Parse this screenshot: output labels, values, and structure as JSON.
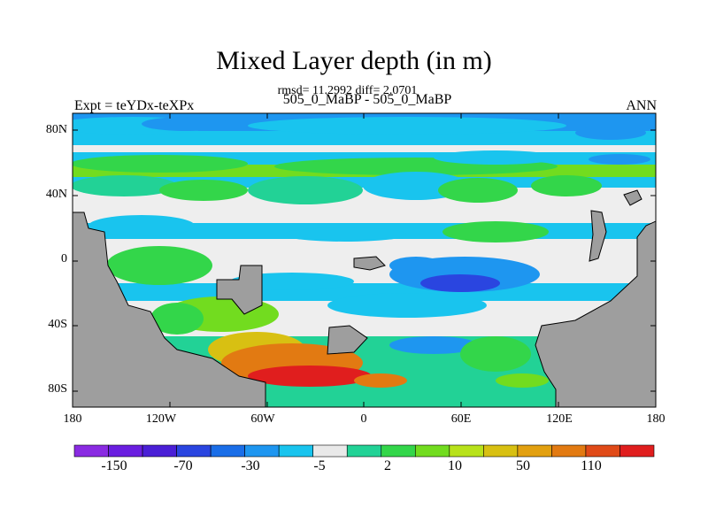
{
  "title": "Mixed Layer depth (in m)",
  "stats": "rmsd= 11.2992 diff= 2.0701",
  "case_label": "505_0_MaBP - 505_0_MaBP",
  "expt_label": "Expt = teYDx-teXPx",
  "season": "ANN",
  "map": {
    "lat_ticks": [
      "80N",
      "40N",
      "0",
      "40S",
      "80S"
    ],
    "lon_ticks": [
      "180",
      "120W",
      "60W",
      "0",
      "60E",
      "120E",
      "180"
    ]
  },
  "colorbar": {
    "labels": [
      "-150",
      "-70",
      "-30",
      "-5",
      "2",
      "10",
      "50",
      "110"
    ],
    "colors": [
      "#8a2be2",
      "#6a1ee0",
      "#4a1fd6",
      "#2a45e0",
      "#1a6ee8",
      "#1e96f0",
      "#19c4ee",
      "#e9e9e9",
      "#22d296",
      "#33d64a",
      "#72dc1f",
      "#b8e21a",
      "#d8c012",
      "#e2a010",
      "#e27a12",
      "#e04a18",
      "#e01e1e"
    ]
  },
  "colors": {
    "land": "#9e9e9e",
    "white": "#eeeeee",
    "teal": "#19c4ee",
    "lightblue": "#1e96f0",
    "blue": "#2a45e0",
    "green": "#33d64a",
    "lightgreen": "#72dc1f",
    "aqua": "#22d296",
    "yellow": "#d8c012",
    "orange": "#e27a12",
    "red": "#e01e1e"
  }
}
